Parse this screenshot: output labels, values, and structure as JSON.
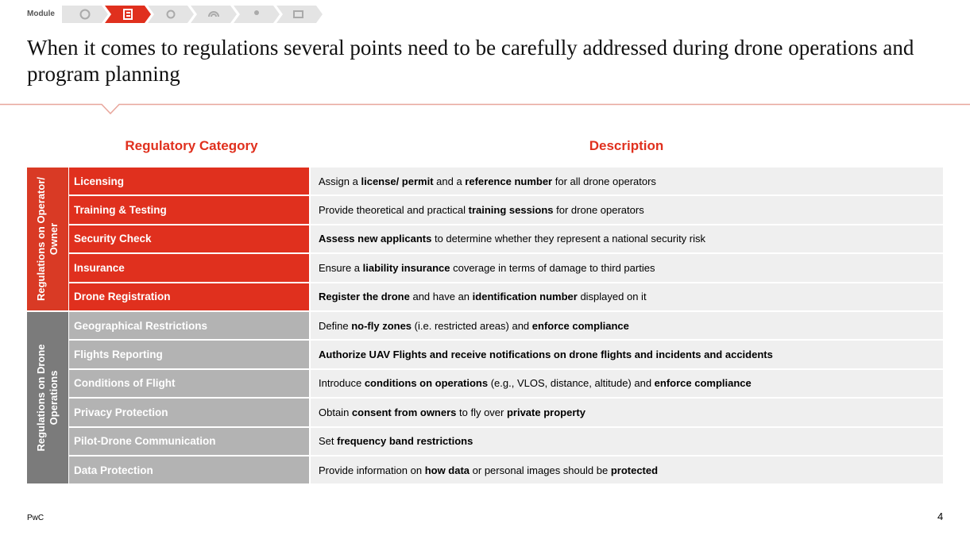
{
  "header": {
    "module": "Module",
    "title": "When it comes to regulations several points need to be carefully addressed during drone operations and program planning"
  },
  "table": {
    "columns": [
      "Regulatory Category",
      "Description"
    ],
    "groups": [
      {
        "label": "Regulations on Operator/ Owner",
        "label_color": "#d93a25",
        "cell_color": "#e0301e",
        "rows": [
          {
            "category": "Licensing",
            "description": [
              {
                "text": "Assign a ",
                "bold": false
              },
              {
                "text": "license/ permit",
                "bold": true
              },
              {
                "text": " and a ",
                "bold": false
              },
              {
                "text": "reference number",
                "bold": true
              },
              {
                "text": " for all drone operators",
                "bold": false
              }
            ]
          },
          {
            "category": "Training & Testing",
            "description": [
              {
                "text": "Provide theoretical and practical ",
                "bold": false
              },
              {
                "text": "training sessions",
                "bold": true
              },
              {
                "text": " for drone operators",
                "bold": false
              }
            ]
          },
          {
            "category": "Security Check",
            "description": [
              {
                "text": "Assess new applicants",
                "bold": true
              },
              {
                "text": " to determine whether they represent a national security risk",
                "bold": false
              }
            ]
          },
          {
            "category": "Insurance",
            "description": [
              {
                "text": "Ensure a ",
                "bold": false
              },
              {
                "text": "liability insurance",
                "bold": true
              },
              {
                "text": " coverage in terms of damage to third parties",
                "bold": false
              }
            ]
          },
          {
            "category": "Drone Registration",
            "description": [
              {
                "text": "Register the drone",
                "bold": true
              },
              {
                "text": " and have an ",
                "bold": false
              },
              {
                "text": "identification number",
                "bold": true
              },
              {
                "text": " displayed on it",
                "bold": false
              }
            ]
          }
        ]
      },
      {
        "label": "Regulations on Drone Operations",
        "label_color": "#7b7b7b",
        "cell_color": "#b3b3b3",
        "rows": [
          {
            "category": "Geographical Restrictions",
            "description": [
              {
                "text": "Define ",
                "bold": false
              },
              {
                "text": "no-fly zones",
                "bold": true
              },
              {
                "text": " (i.e. restricted areas) and ",
                "bold": false
              },
              {
                "text": "enforce compliance",
                "bold": true
              }
            ]
          },
          {
            "category": "Flights Reporting",
            "description": [
              {
                "text": "Authorize UAV Flights and receive notifications on drone flights and incidents and accidents",
                "bold": true
              }
            ]
          },
          {
            "category": "Conditions of Flight",
            "description": [
              {
                "text": "Introduce ",
                "bold": false
              },
              {
                "text": "conditions on operations",
                "bold": true
              },
              {
                "text": " (e.g., VLOS, distance, altitude) and ",
                "bold": false
              },
              {
                "text": "enforce compliance",
                "bold": true
              }
            ]
          },
          {
            "category": "Privacy Protection",
            "description": [
              {
                "text": "Obtain ",
                "bold": false
              },
              {
                "text": "consent from owners",
                "bold": true
              },
              {
                "text": " to fly over ",
                "bold": false
              },
              {
                "text": "private property",
                "bold": true
              }
            ]
          },
          {
            "category": "Pilot-Drone Communication",
            "description": [
              {
                "text": "Set ",
                "bold": false
              },
              {
                "text": "frequency band restrictions",
                "bold": true
              }
            ]
          },
          {
            "category": "Data Protection",
            "description": [
              {
                "text": "Provide information on ",
                "bold": false
              },
              {
                "text": "how data",
                "bold": true
              },
              {
                "text": " or personal images should be ",
                "bold": false
              },
              {
                "text": "protected",
                "bold": true
              }
            ]
          }
        ]
      }
    ]
  },
  "footer": {
    "source": "PwC",
    "page": "4"
  }
}
